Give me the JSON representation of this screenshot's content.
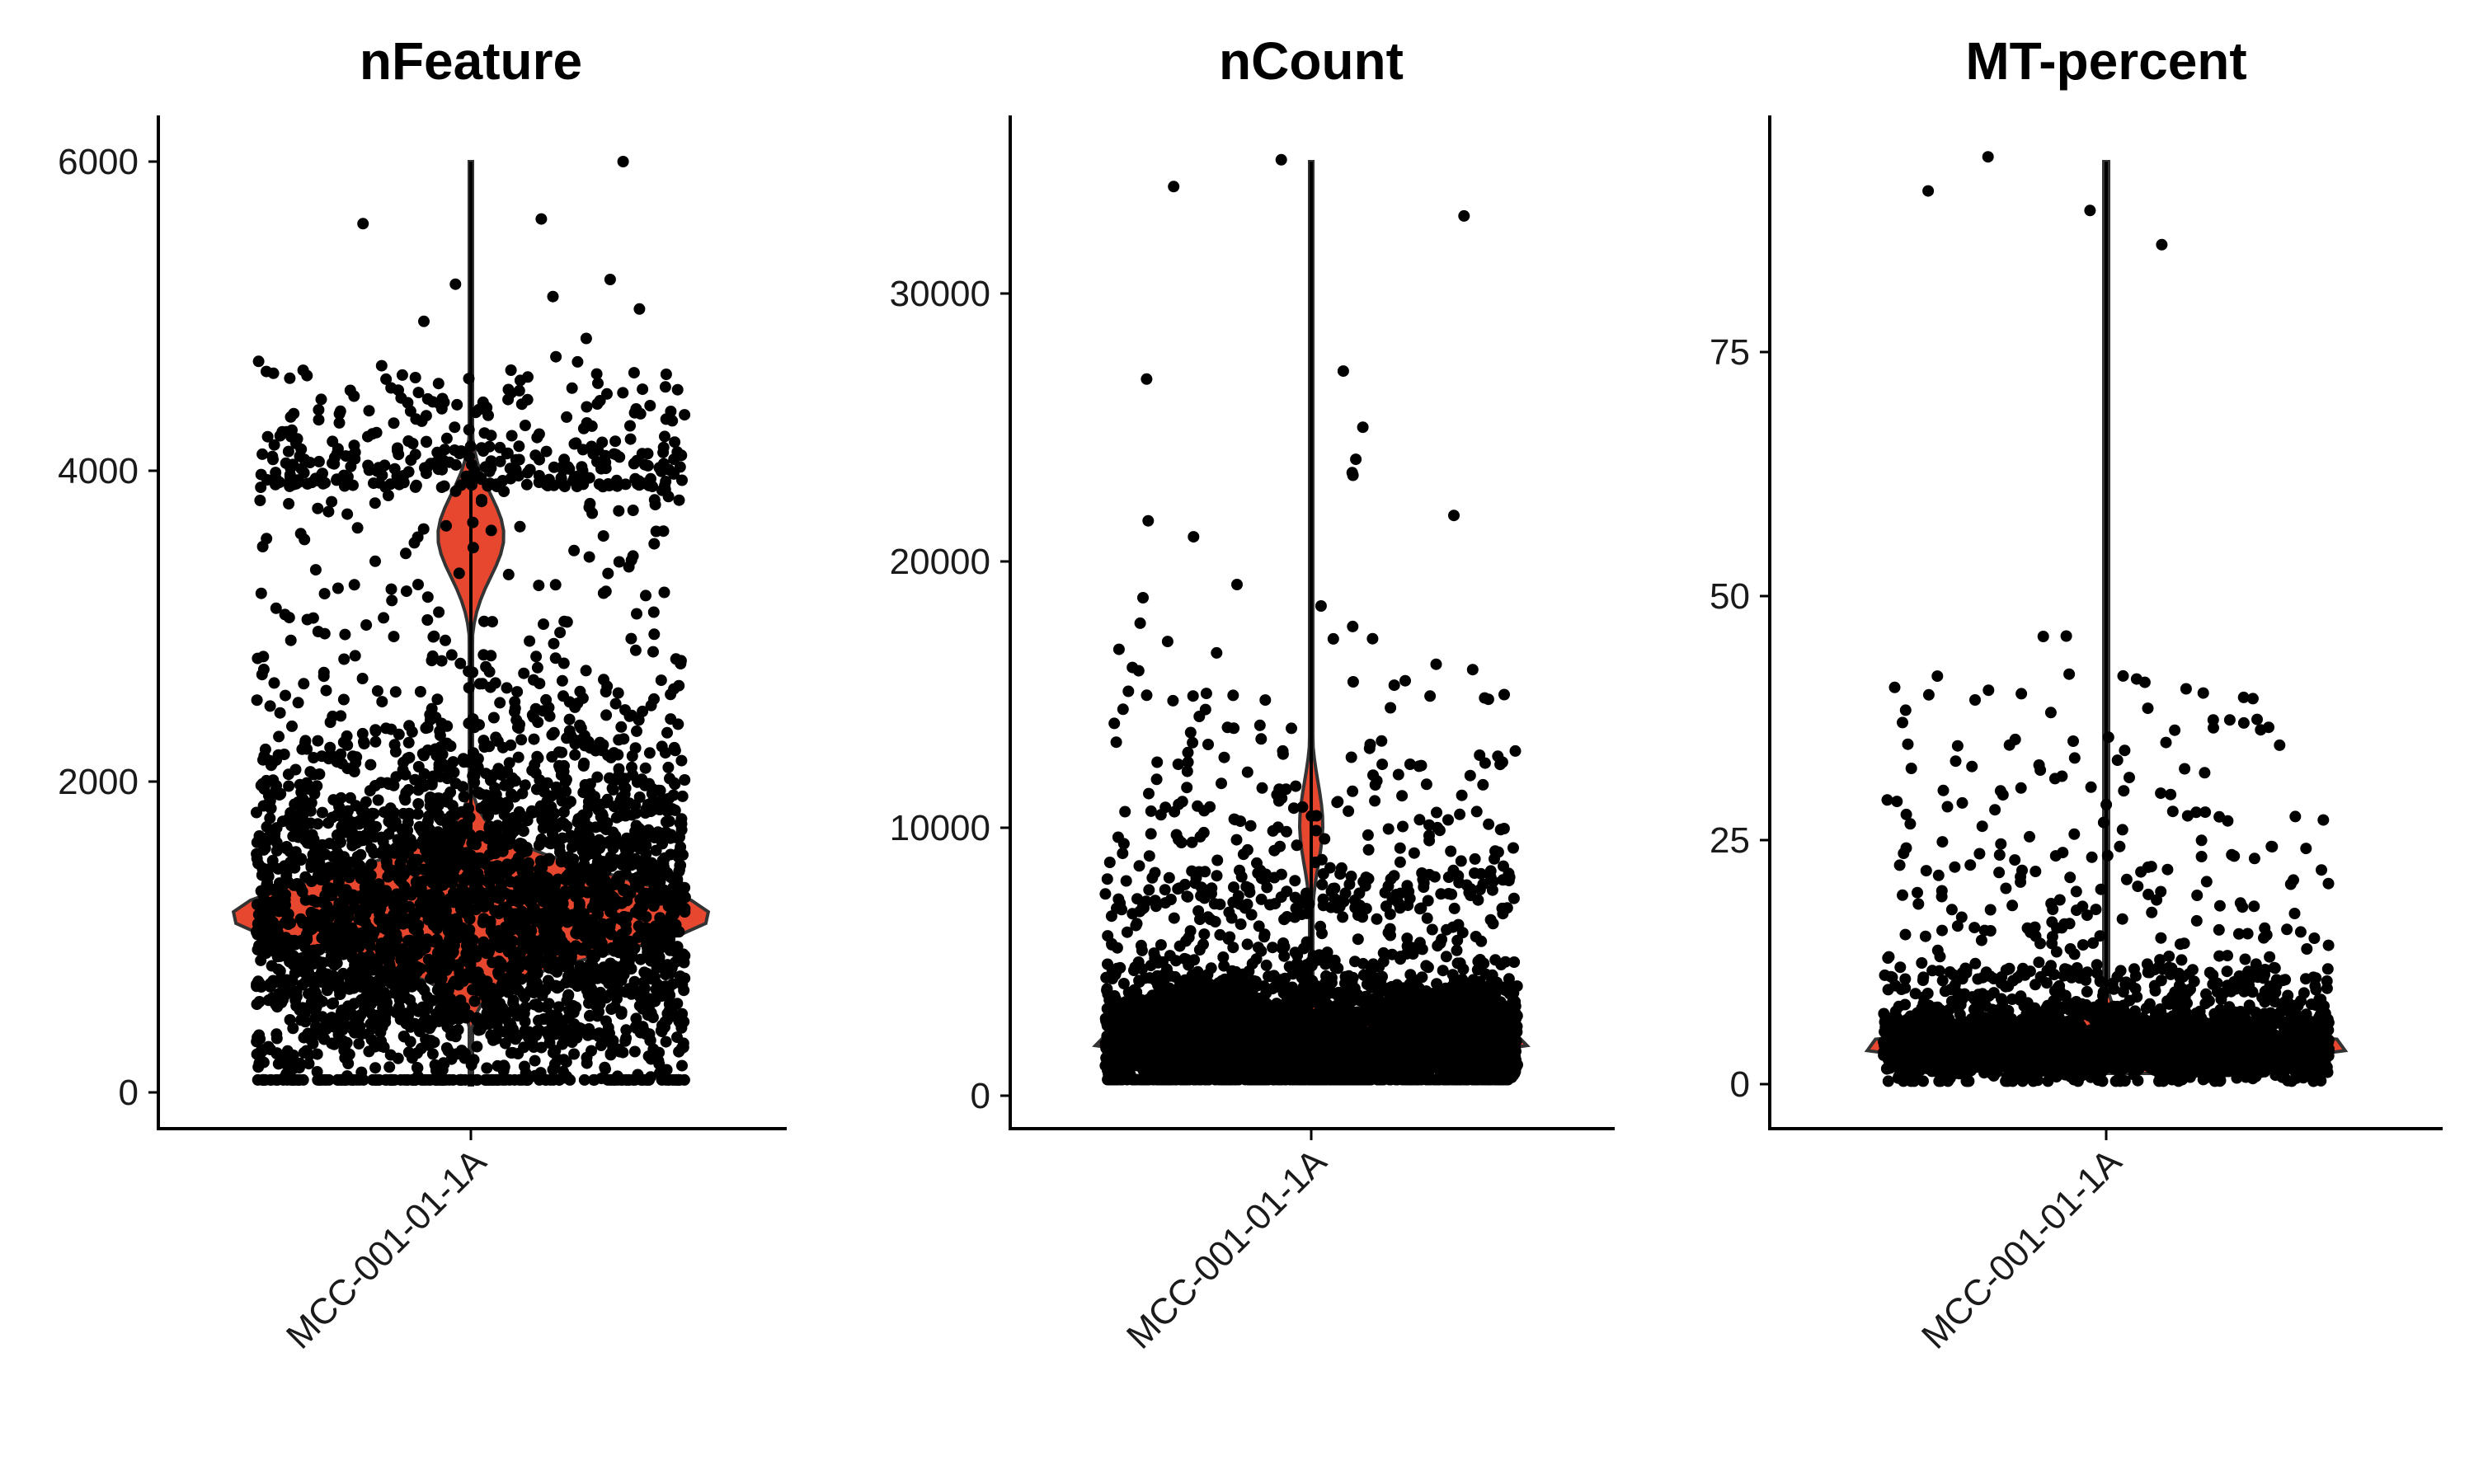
{
  "figure": {
    "background": "#ffffff",
    "violin_fill": "#E8472F",
    "violin_stroke": "#333333",
    "point_color": "#000000"
  },
  "chart_data": [
    {
      "type": "violin",
      "title": "nFeature",
      "xlabel": "",
      "ylabel": "",
      "categories": [
        "MCC-001-01-1A"
      ],
      "yticks": [
        0,
        2000,
        4000,
        6000
      ],
      "ytick_labels": [
        "0",
        "2000",
        "4000",
        "6000"
      ],
      "ylim": [
        -230,
        6300
      ],
      "summary": {
        "median_approx": 1100,
        "min_approx": 80,
        "max_approx": 6000,
        "bulk_range": [
          300,
          3900
        ],
        "outliers": [
          6000,
          5630,
          5600,
          5240,
          5210,
          5130,
          5050,
          4970,
          4860
        ]
      },
      "grid": false,
      "legend": "none"
    },
    {
      "type": "violin",
      "title": "nCount",
      "xlabel": "",
      "ylabel": "",
      "categories": [
        "MCC-001-01-1A"
      ],
      "yticks": [
        0,
        10000,
        20000,
        30000
      ],
      "ytick_labels": [
        "0",
        "10000",
        "20000",
        "30000"
      ],
      "ylim": [
        -1200,
        36800
      ],
      "summary": {
        "median_approx": 2100,
        "min_approx": 600,
        "max_approx": 35000,
        "bulk_range": [
          600,
          7000
        ],
        "outliers": [
          35000,
          34000,
          32900,
          27100,
          26800,
          25000,
          23800,
          23300,
          23200,
          21700,
          21500,
          20900
        ]
      },
      "grid": false,
      "legend": "none"
    },
    {
      "type": "violin",
      "title": "MT-percent",
      "xlabel": "",
      "ylabel": "",
      "categories": [
        "MCC-001-01-1A"
      ],
      "yticks": [
        0,
        25,
        50,
        75
      ],
      "ytick_labels": [
        "0",
        "25",
        "50",
        "75"
      ],
      "ylim": [
        -4,
        99
      ],
      "summary": {
        "median_approx": 4,
        "min_approx": 0.3,
        "max_approx": 95,
        "bulk_range": [
          1,
          10
        ],
        "outliers": [
          95,
          91.5,
          89.5,
          86,
          42,
          41.5,
          40.5,
          40,
          37,
          36.5,
          35
        ]
      },
      "grid": false,
      "legend": "none"
    }
  ],
  "panels": [
    {
      "title": "nFeature",
      "category": "MCC-001-01-1A",
      "ticks": [
        {
          "label": "6000",
          "y": 196
        },
        {
          "label": "4000",
          "y": 571
        },
        {
          "label": "2000",
          "y": 948
        },
        {
          "label": "0",
          "y": 1325
        }
      ]
    },
    {
      "title": "nCount",
      "category": "MCC-001-01-1A",
      "ticks": [
        {
          "label": "30000",
          "y": 356
        },
        {
          "label": "20000",
          "y": 681
        },
        {
          "label": "10000",
          "y": 1004
        },
        {
          "label": "0",
          "y": 1329
        }
      ]
    },
    {
      "title": "MT-percent",
      "category": "MCC-001-01-1A",
      "ticks": [
        {
          "label": "75",
          "y": 427
        },
        {
          "label": "50",
          "y": 723
        },
        {
          "label": "25",
          "y": 1019
        },
        {
          "label": "0",
          "y": 1315
        }
      ]
    }
  ]
}
